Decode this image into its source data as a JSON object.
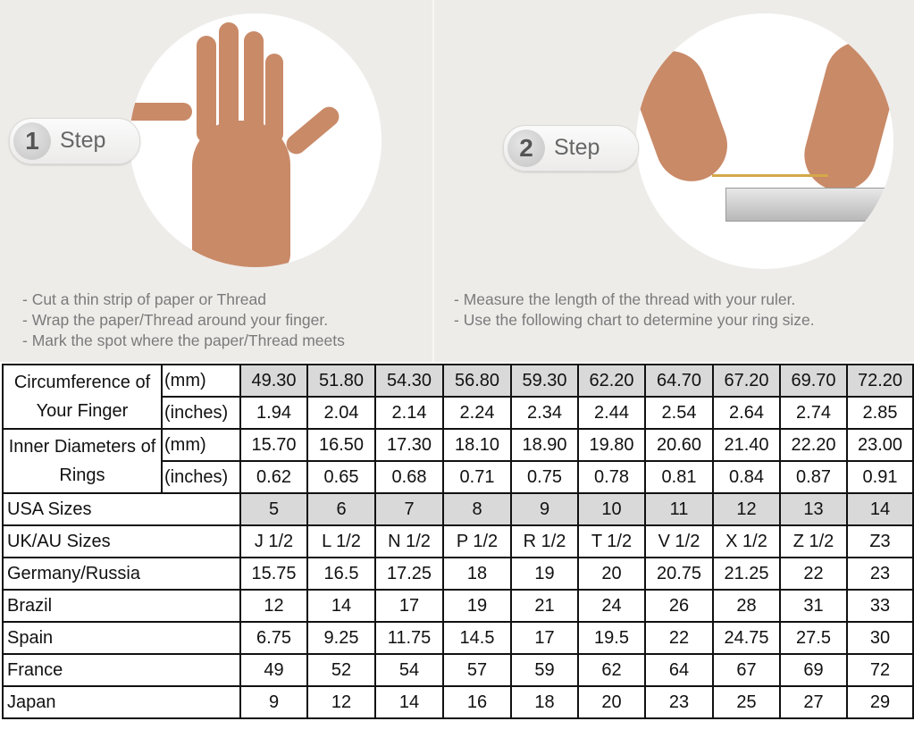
{
  "steps": [
    {
      "number": "1",
      "label": "Step",
      "instructions": [
        "- Cut a thin strip of paper or Thread",
        "- Wrap the paper/Thread around your finger.",
        "- Mark the spot where the paper/Thread meets"
      ]
    },
    {
      "number": "2",
      "label": "Step",
      "instructions": [
        "- Measure the length of the thread with your ruler.",
        "- Use the following chart to determine your ring size."
      ]
    }
  ],
  "table": {
    "groups": [
      {
        "label": "Circumference of Your Finger",
        "rows": [
          {
            "unit": "(mm)",
            "shaded": true,
            "values": [
              "49.30",
              "51.80",
              "54.30",
              "56.80",
              "59.30",
              "62.20",
              "64.70",
              "67.20",
              "69.70",
              "72.20"
            ]
          },
          {
            "unit": "(inches)",
            "values": [
              "1.94",
              "2.04",
              "2.14",
              "2.24",
              "2.34",
              "2.44",
              "2.54",
              "2.64",
              "2.74",
              "2.85"
            ]
          }
        ]
      },
      {
        "label": "Inner Diameters of Rings",
        "rows": [
          {
            "unit": "(mm)",
            "values": [
              "15.70",
              "16.50",
              "17.30",
              "18.10",
              "18.90",
              "19.80",
              "20.60",
              "21.40",
              "22.20",
              "23.00"
            ]
          },
          {
            "unit": "(inches)",
            "values": [
              "0.62",
              "0.65",
              "0.68",
              "0.71",
              "0.75",
              "0.78",
              "0.81",
              "0.84",
              "0.87",
              "0.91"
            ]
          }
        ]
      }
    ],
    "rows": [
      {
        "label": "USA Sizes",
        "shaded": true,
        "values": [
          "5",
          "6",
          "7",
          "8",
          "9",
          "10",
          "11",
          "12",
          "13",
          "14"
        ]
      },
      {
        "label": "UK/AU Sizes",
        "values": [
          "J 1/2",
          "L 1/2",
          "N 1/2",
          "P 1/2",
          "R 1/2",
          "T 1/2",
          "V 1/2",
          "X 1/2",
          "Z 1/2",
          "Z3"
        ]
      },
      {
        "label": "Germany/Russia",
        "values": [
          "15.75",
          "16.5",
          "17.25",
          "18",
          "19",
          "20",
          "20.75",
          "21.25",
          "22",
          "23"
        ]
      },
      {
        "label": "Brazil",
        "values": [
          "12",
          "14",
          "17",
          "19",
          "21",
          "24",
          "26",
          "28",
          "31",
          "33"
        ]
      },
      {
        "label": "Spain",
        "values": [
          "6.75",
          "9.25",
          "11.75",
          "14.5",
          "17",
          "19.5",
          "22",
          "24.75",
          "27.5",
          "30"
        ]
      },
      {
        "label": "France",
        "values": [
          "49",
          "52",
          "54",
          "57",
          "59",
          "62",
          "64",
          "67",
          "69",
          "72"
        ]
      },
      {
        "label": "Japan",
        "values": [
          "9",
          "12",
          "14",
          "16",
          "18",
          "20",
          "23",
          "25",
          "27",
          "29"
        ]
      }
    ]
  }
}
